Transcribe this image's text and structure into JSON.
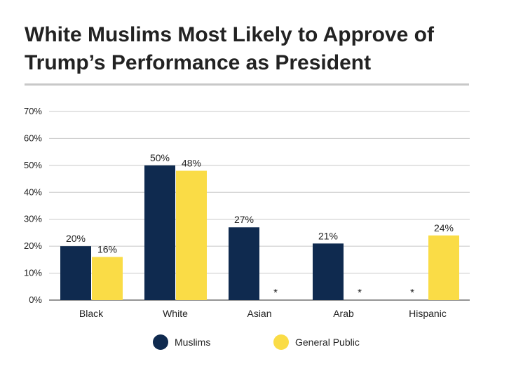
{
  "title": "White Muslims Most Likely to Approve of Trump’s Performance as President",
  "colors": {
    "muslims": "#0f2a4f",
    "general_public": "#fadc46"
  },
  "legend": {
    "muslims": "Muslims",
    "general_public": "General Public"
  },
  "chart_data": {
    "type": "bar",
    "title": "White Muslims Most Likely to Approve of Trump’s Performance as President",
    "categories": [
      "Black",
      "White",
      "Asian",
      "Arab",
      "Hispanic"
    ],
    "series": [
      {
        "name": "Muslims",
        "values": [
          20,
          50,
          27,
          21,
          null
        ],
        "labels": [
          "20%",
          "50%",
          "27%",
          "21%",
          "*"
        ]
      },
      {
        "name": "General Public",
        "values": [
          16,
          48,
          null,
          null,
          24
        ],
        "labels": [
          "16%",
          "48%",
          "*",
          "*",
          "24%"
        ]
      }
    ],
    "ylim": [
      0,
      70
    ],
    "yticks": [
      "0%",
      "10%",
      "20%",
      "30%",
      "40%",
      "50%",
      "60%",
      "70%"
    ],
    "grid": true,
    "legend_position": "bottom"
  }
}
